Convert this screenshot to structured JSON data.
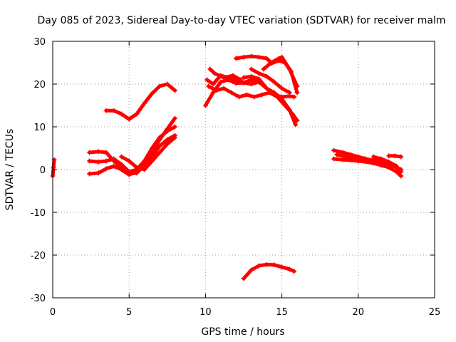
{
  "chart_data": {
    "type": "scatter",
    "title": "Day 085 of 2023, Sidereal Day-to-day VTEC variation (SDTVAR) for receiver malm",
    "xlabel": "GPS time / hours",
    "ylabel": "SDTVAR / TECUs",
    "xlim": [
      0,
      25
    ],
    "ylim": [
      -30,
      30
    ],
    "xticks": [
      0,
      5,
      10,
      15,
      20,
      25
    ],
    "yticks": [
      -30,
      -20,
      -10,
      0,
      10,
      20,
      30
    ],
    "xtick_labels": [
      "0",
      "5",
      "10",
      "15",
      "20",
      "25"
    ],
    "ytick_labels": [
      "-30",
      "-20",
      "-10",
      "0",
      "10",
      "20",
      "30"
    ],
    "grid": true,
    "marker": "+",
    "color": "#ff0000",
    "series": [
      {
        "name": "s1",
        "x": [
          0.0,
          0.05,
          0.1
        ],
        "y": [
          -1.5,
          0.5,
          2.3
        ]
      },
      {
        "name": "s2",
        "x": [
          3.5,
          4.0,
          4.5,
          5.0,
          5.5,
          6.0,
          6.5,
          7.0,
          7.5,
          8.0
        ],
        "y": [
          13.8,
          13.8,
          13.0,
          11.8,
          13.0,
          15.5,
          17.8,
          19.5,
          20.0,
          18.5
        ]
      },
      {
        "name": "s3",
        "x": [
          2.4,
          3.0,
          3.5,
          4.0,
          4.5,
          5.0,
          5.5,
          6.0,
          6.5,
          7.0,
          7.5,
          8.0
        ],
        "y": [
          -1.0,
          -0.8,
          0.2,
          0.8,
          0.0,
          -1.2,
          -0.5,
          1.5,
          4.0,
          7.0,
          9.5,
          12.0
        ]
      },
      {
        "name": "s4",
        "x": [
          2.4,
          3.0,
          3.5,
          4.0,
          4.5,
          5.0,
          5.5,
          6.0,
          6.5,
          7.0,
          7.5,
          8.0
        ],
        "y": [
          2.0,
          1.8,
          2.0,
          2.5,
          1.2,
          -0.5,
          0.0,
          2.0,
          5.0,
          7.5,
          9.0,
          10.0
        ]
      },
      {
        "name": "s5",
        "x": [
          2.4,
          3.0,
          3.5,
          4.0,
          4.5,
          5.0,
          5.5,
          6.0,
          6.5,
          7.0,
          7.5,
          8.0
        ],
        "y": [
          4.0,
          4.2,
          4.0,
          2.0,
          0.5,
          -1.0,
          -0.8,
          1.0,
          3.0,
          5.5,
          7.0,
          8.0
        ]
      },
      {
        "name": "s6",
        "x": [
          4.5,
          5.0,
          5.5,
          6.0,
          6.5,
          7.0,
          7.5,
          8.0
        ],
        "y": [
          3.0,
          2.0,
          0.5,
          0.0,
          2.0,
          4.0,
          6.0,
          7.5
        ]
      },
      {
        "name": "s7",
        "x": [
          10.0,
          10.5,
          11.0,
          11.5,
          12.0,
          12.5,
          13.0,
          13.5,
          14.0,
          14.5,
          15.0,
          15.5,
          15.9
        ],
        "y": [
          15.0,
          18.0,
          20.5,
          21.0,
          20.2,
          20.3,
          21.0,
          20.5,
          19.0,
          18.0,
          16.5,
          14.0,
          10.5
        ]
      },
      {
        "name": "s8",
        "x": [
          10.1,
          10.5,
          11.0,
          11.5,
          12.0,
          12.5,
          13.0,
          13.5
        ],
        "y": [
          21.0,
          20.0,
          22.0,
          21.5,
          20.8,
          20.3,
          20.0,
          20.5
        ]
      },
      {
        "name": "s9",
        "x": [
          10.2,
          10.7,
          11.2,
          11.7,
          12.2,
          12.7,
          13.2,
          13.7,
          14.2,
          14.7,
          15.2,
          15.7,
          16.0
        ],
        "y": [
          19.5,
          18.5,
          19.0,
          18.0,
          17.0,
          17.5,
          17.0,
          17.5,
          18.0,
          17.0,
          15.0,
          13.0,
          11.5
        ]
      },
      {
        "name": "s10",
        "x": [
          10.3,
          10.6,
          11.2,
          11.8,
          12.3
        ],
        "y": [
          23.5,
          22.5,
          21.5,
          22.0,
          21.0
        ]
      },
      {
        "name": "s11",
        "x": [
          12.5,
          13.0,
          13.5,
          14.0,
          14.5,
          15.0,
          15.5,
          15.8
        ],
        "y": [
          21.5,
          21.8,
          21.2,
          19.0,
          17.5,
          17.0,
          17.2,
          17.0
        ]
      },
      {
        "name": "s12",
        "x": [
          12.0,
          12.5,
          13.0,
          13.5,
          14.0,
          14.3
        ],
        "y": [
          26.0,
          26.3,
          26.5,
          26.3,
          26.0,
          25.0
        ]
      },
      {
        "name": "s13",
        "x": [
          13.8,
          14.3,
          14.8,
          15.0,
          15.5,
          16.0
        ],
        "y": [
          23.5,
          25.0,
          26.0,
          26.3,
          23.5,
          19.5
        ]
      },
      {
        "name": "s14",
        "x": [
          14.3,
          14.8,
          15.2,
          15.6,
          16.0
        ],
        "y": [
          24.8,
          25.5,
          25.0,
          23.0,
          18.0
        ]
      },
      {
        "name": "s15",
        "x": [
          13.0,
          13.5,
          14.0,
          14.5,
          15.0,
          15.5
        ],
        "y": [
          23.5,
          22.5,
          21.8,
          20.5,
          19.0,
          18.0
        ]
      },
      {
        "name": "s16",
        "x": [
          12.5,
          13.0,
          13.5,
          14.0,
          14.5,
          15.0,
          15.5,
          15.8
        ],
        "y": [
          -25.5,
          -23.5,
          -22.5,
          -22.2,
          -22.3,
          -22.8,
          -23.3,
          -23.8
        ]
      },
      {
        "name": "s17",
        "x": [
          18.4,
          19.0,
          19.5,
          20.0,
          20.5,
          21.0,
          21.5,
          22.0,
          22.5,
          22.8
        ],
        "y": [
          4.5,
          4.0,
          3.5,
          3.0,
          2.5,
          2.0,
          1.5,
          0.5,
          -0.5,
          -1.5
        ]
      },
      {
        "name": "s18",
        "x": [
          18.4,
          19.0,
          19.5,
          20.0,
          20.5,
          21.0,
          21.5,
          22.0
        ],
        "y": [
          2.5,
          2.3,
          2.2,
          2.0,
          1.8,
          1.5,
          1.0,
          0.5
        ]
      },
      {
        "name": "s19",
        "x": [
          18.6,
          19.2,
          19.8,
          20.4,
          21.0,
          21.6,
          22.2,
          22.8
        ],
        "y": [
          3.5,
          3.0,
          2.8,
          2.5,
          2.2,
          1.8,
          1.0,
          0.0
        ]
      },
      {
        "name": "s20",
        "x": [
          21.0,
          21.5,
          22.0,
          22.5,
          22.8
        ],
        "y": [
          3.0,
          2.5,
          1.8,
          0.8,
          -0.5
        ]
      },
      {
        "name": "s21",
        "x": [
          22.0,
          22.4,
          22.8
        ],
        "y": [
          3.2,
          3.2,
          3.0
        ]
      }
    ]
  }
}
